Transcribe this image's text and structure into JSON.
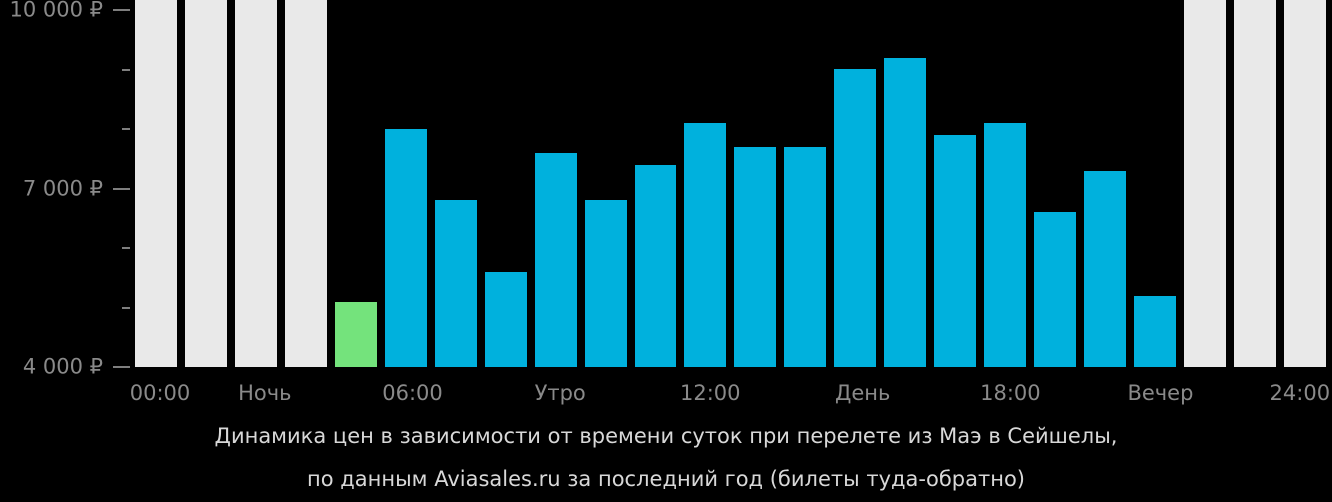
{
  "caption": {
    "line1": "Динамика цен в зависимости от времени суток при перелете из Маэ в Сейшелы,",
    "line2": "по данным Aviasales.ru за последний год (билеты туда-обратно)"
  },
  "chart_data": {
    "type": "bar",
    "title": "Динамика цен в зависимости от времени суток при перелете из Маэ в Сейшелы, по данным Aviasales.ru за последний год (билеты туда-обратно)",
    "currency": "RUB",
    "ylim": [
      4000,
      10000
    ],
    "grid": false,
    "legend": null,
    "y_axis": {
      "ticks": [
        {
          "value": 10000,
          "label": "10 000 ₽",
          "major": true
        },
        {
          "value": 9000,
          "label": "",
          "major": false
        },
        {
          "value": 8000,
          "label": "",
          "major": false
        },
        {
          "value": 7000,
          "label": "7 000 ₽",
          "major": true
        },
        {
          "value": 6000,
          "label": "",
          "major": false
        },
        {
          "value": 5000,
          "label": "",
          "major": false
        },
        {
          "value": 4000,
          "label": "4 000 ₽",
          "major": true
        }
      ]
    },
    "x_axis": {
      "labels": [
        {
          "text": "00:00",
          "pos": 2.1
        },
        {
          "text": "Ночь",
          "pos": 10.9
        },
        {
          "text": "06:00",
          "pos": 23.3
        },
        {
          "text": "Утро",
          "pos": 35.7
        },
        {
          "text": "12:00",
          "pos": 48.3
        },
        {
          "text": "День",
          "pos": 61.1
        },
        {
          "text": "18:00",
          "pos": 73.5
        },
        {
          "text": "Вечер",
          "pos": 86.1
        },
        {
          "text": "24:00",
          "pos": 97.8
        }
      ]
    },
    "bars": [
      {
        "hour": "00",
        "kind": "nodata",
        "value": null
      },
      {
        "hour": "01",
        "kind": "nodata",
        "value": null
      },
      {
        "hour": "02",
        "kind": "nodata",
        "value": null
      },
      {
        "hour": "03",
        "kind": "nodata",
        "value": null
      },
      {
        "hour": "04",
        "kind": "min",
        "value": 5100
      },
      {
        "hour": "05",
        "kind": "price",
        "value": 8000
      },
      {
        "hour": "06",
        "kind": "price",
        "value": 6800
      },
      {
        "hour": "07",
        "kind": "price",
        "value": 5600
      },
      {
        "hour": "08",
        "kind": "price",
        "value": 7600
      },
      {
        "hour": "09",
        "kind": "price",
        "value": 6800
      },
      {
        "hour": "10",
        "kind": "price",
        "value": 7400
      },
      {
        "hour": "11",
        "kind": "price",
        "value": 8100
      },
      {
        "hour": "12",
        "kind": "price",
        "value": 7700
      },
      {
        "hour": "13",
        "kind": "price",
        "value": 7700
      },
      {
        "hour": "14",
        "kind": "price",
        "value": 9000
      },
      {
        "hour": "15",
        "kind": "price",
        "value": 9200
      },
      {
        "hour": "16",
        "kind": "price",
        "value": 7900
      },
      {
        "hour": "17",
        "kind": "price",
        "value": 8100
      },
      {
        "hour": "18",
        "kind": "price",
        "value": 6600
      },
      {
        "hour": "19",
        "kind": "price",
        "value": 7300
      },
      {
        "hour": "20",
        "kind": "price",
        "value": 5200
      },
      {
        "hour": "21",
        "kind": "nodata",
        "value": null
      },
      {
        "hour": "22",
        "kind": "nodata",
        "value": null
      },
      {
        "hour": "23",
        "kind": "nodata",
        "value": null
      }
    ],
    "colors": {
      "price": "#00b1dd",
      "min": "#74e37c",
      "nodata": "#e9e9e9",
      "axis_text": "#8a8a8a",
      "tick": "#7e7e7e",
      "caption_text": "#d8d8d8",
      "background": "#000000"
    }
  }
}
